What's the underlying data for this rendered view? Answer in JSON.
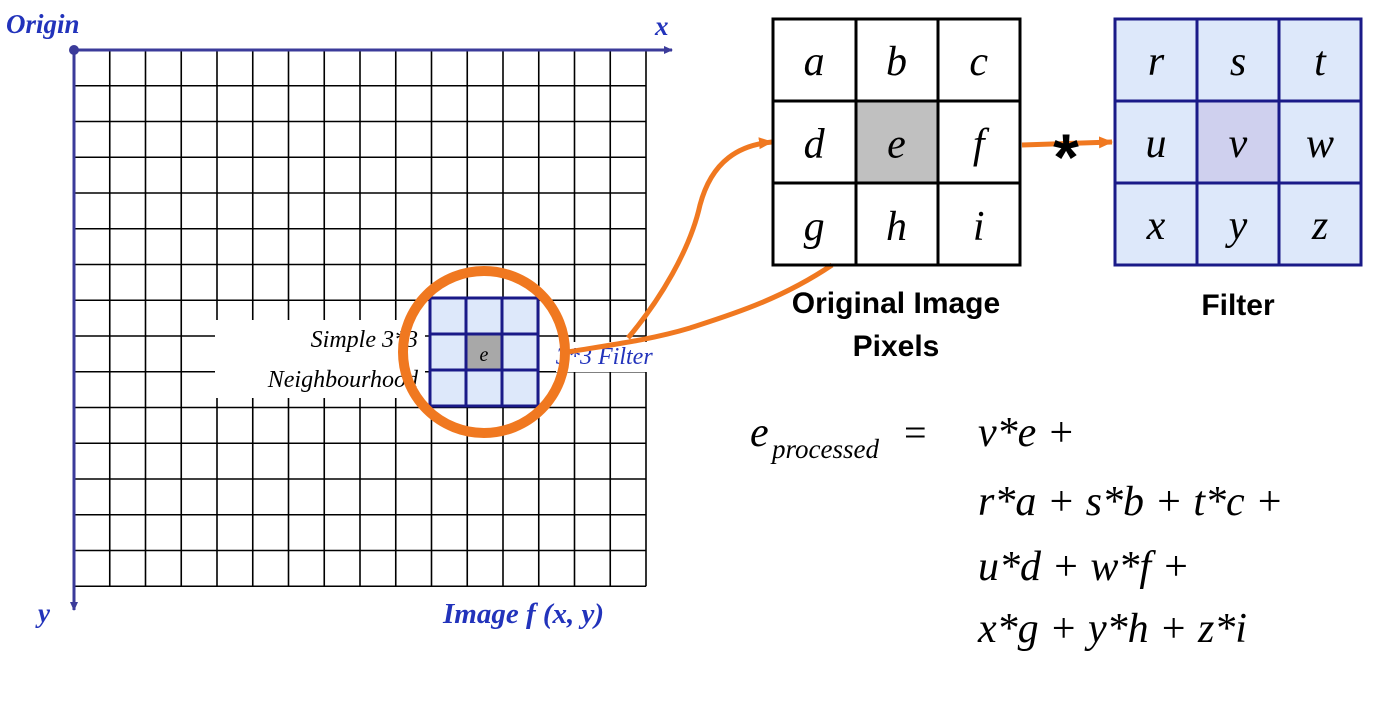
{
  "colors": {
    "axis": "#3b3b9a",
    "axis_label": "#2233bb",
    "grid": "#000000",
    "highlight_orange": "#f07820",
    "filter_fill": "#dde8fa",
    "filter_border": "#1a1a88",
    "center_gray": "#c0c0c0",
    "center_lavender": "#cfd0ee",
    "ink": "#000000"
  },
  "labels": {
    "origin": "Origin",
    "x_axis": "x",
    "y_axis": "y",
    "image": "Image f (x, y)",
    "neighbourhood_line1": "Simple 3*3",
    "neighbourhood_line2": "Neighbourhood",
    "filter_small": "3*3 Filter",
    "center_small": "e",
    "convolution_op": "*",
    "pixels_caption_line1": "Original Image",
    "pixels_caption_line2": "Pixels",
    "filter_caption": "Filter"
  },
  "pixel_grid": [
    "a",
    "b",
    "c",
    "d",
    "e",
    "f",
    "g",
    "h",
    "i"
  ],
  "filter_grid": [
    "r",
    "s",
    "t",
    "u",
    "v",
    "w",
    "x",
    "y",
    "z"
  ],
  "formula": {
    "lhs_main": "e",
    "lhs_sub": "processed",
    "equals": "=",
    "line1": "v*e +",
    "line2": "r*a + s*b + t*c +",
    "line3": "u*d + w*f +",
    "line4": "x*g + y*h + z*i"
  }
}
